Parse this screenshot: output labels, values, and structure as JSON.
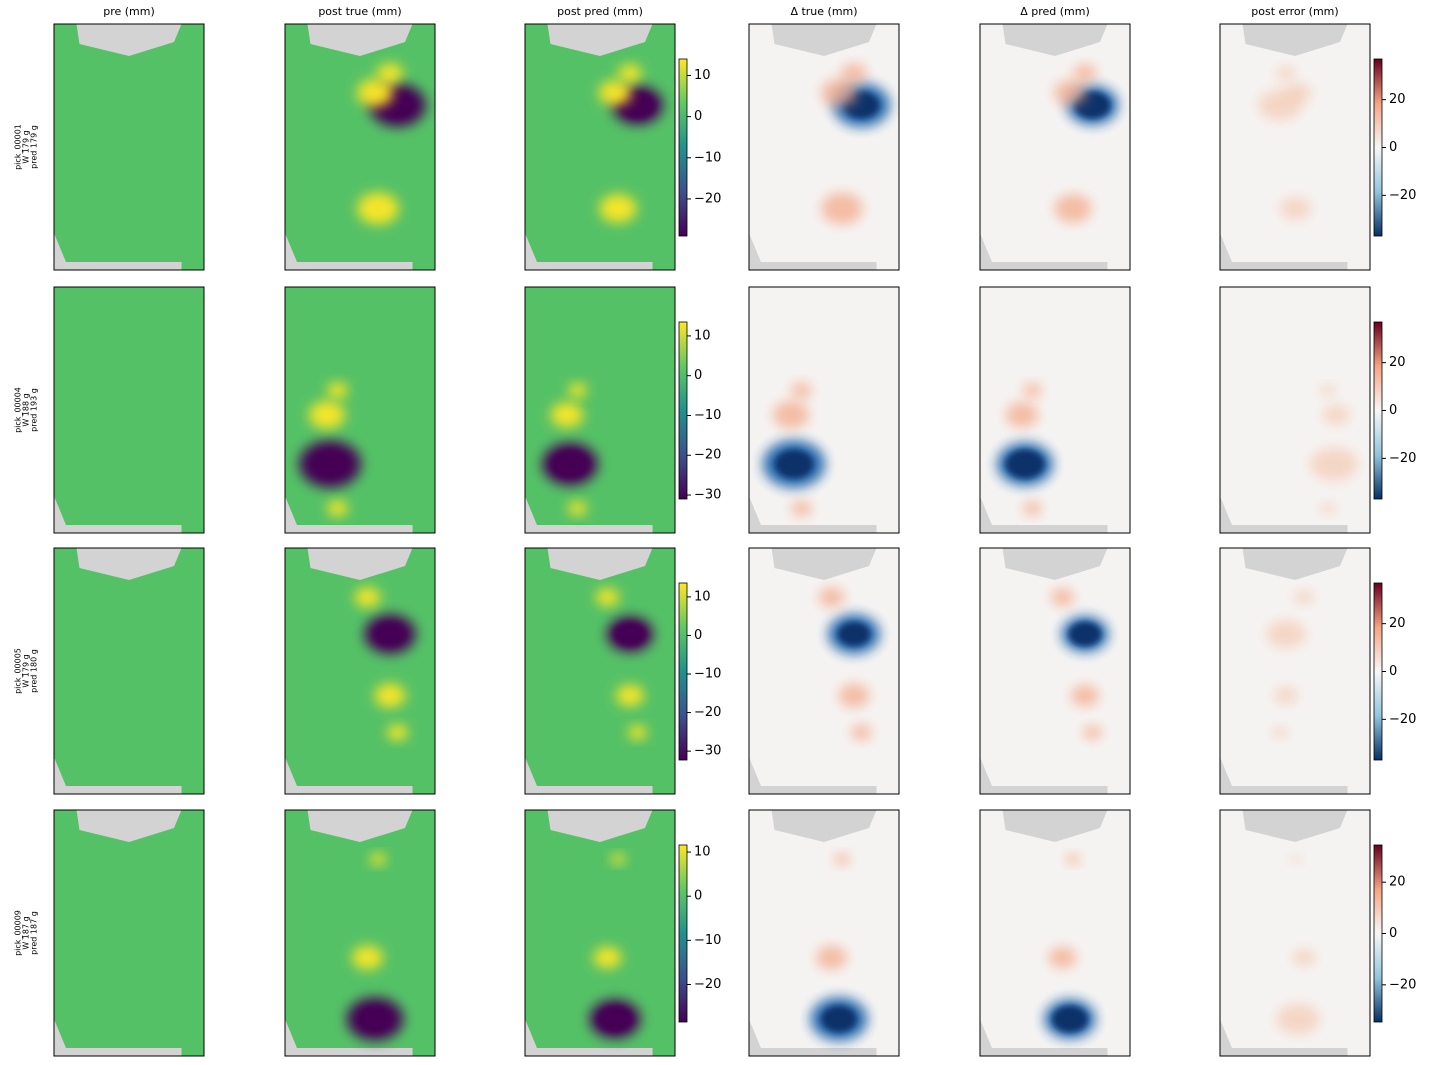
{
  "chart_data": {
    "type": "heatmap-grid",
    "columns": [
      "pre (mm)",
      "post true (mm)",
      "post pred (mm)",
      "Δ true (mm)",
      "Δ pred (mm)",
      "post error (mm)"
    ],
    "cmaps": [
      "viridis",
      "viridis",
      "viridis",
      "RdBu_r",
      "RdBu_r",
      "RdBu_r"
    ],
    "rows": [
      {
        "label": [
          "pick_00001",
          "W 179 g",
          "pred 179 g"
        ],
        "post_colorbar": {
          "ylim": [
            -29,
            14
          ],
          "yticks": [
            10,
            0,
            {
              "value": -10,
              "label": "−10"
            },
            {
              "value": -20,
              "label": "−20"
            }
          ]
        },
        "error_colorbar": {
          "ylim": [
            -37,
            37
          ],
          "yticks": [
            20,
            0,
            {
              "value": -20,
              "label": "−20"
            }
          ]
        }
      },
      {
        "label": [
          "pick_00004",
          "W 188 g",
          "pred 193 g"
        ],
        "post_colorbar": {
          "ylim": [
            -31,
            13.5
          ],
          "yticks": [
            10,
            0,
            {
              "value": -10,
              "label": "−10"
            },
            {
              "value": -20,
              "label": "−20"
            },
            {
              "value": -30,
              "label": "−30"
            }
          ]
        },
        "error_colorbar": {
          "ylim": [
            -37,
            37
          ],
          "yticks": [
            20,
            0,
            {
              "value": -20,
              "label": "−20"
            }
          ]
        }
      },
      {
        "label": [
          "pick_00005",
          "W 179 g",
          "pred 180 g"
        ],
        "post_colorbar": {
          "ylim": [
            -32.3,
            13.6
          ],
          "yticks": [
            10,
            0,
            {
              "value": -10,
              "label": "−10"
            },
            {
              "value": -20,
              "label": "−20"
            },
            {
              "value": -30,
              "label": "−30"
            }
          ]
        },
        "error_colorbar": {
          "ylim": [
            -37,
            37
          ],
          "yticks": [
            20,
            0,
            {
              "value": -20,
              "label": "−20"
            }
          ]
        }
      },
      {
        "label": [
          "pick_00009",
          "W 187 g",
          "pred 187 g"
        ],
        "post_colorbar": {
          "ylim": [
            -28.5,
            11.6
          ],
          "yticks": [
            10,
            0,
            {
              "value": -10,
              "label": "−10"
            },
            {
              "value": -20,
              "label": "−20"
            }
          ]
        },
        "error_colorbar": {
          "ylim": [
            -34.5,
            34.5
          ],
          "yticks": [
            20,
            0,
            {
              "value": -20,
              "label": "−20"
            }
          ]
        }
      }
    ]
  }
}
